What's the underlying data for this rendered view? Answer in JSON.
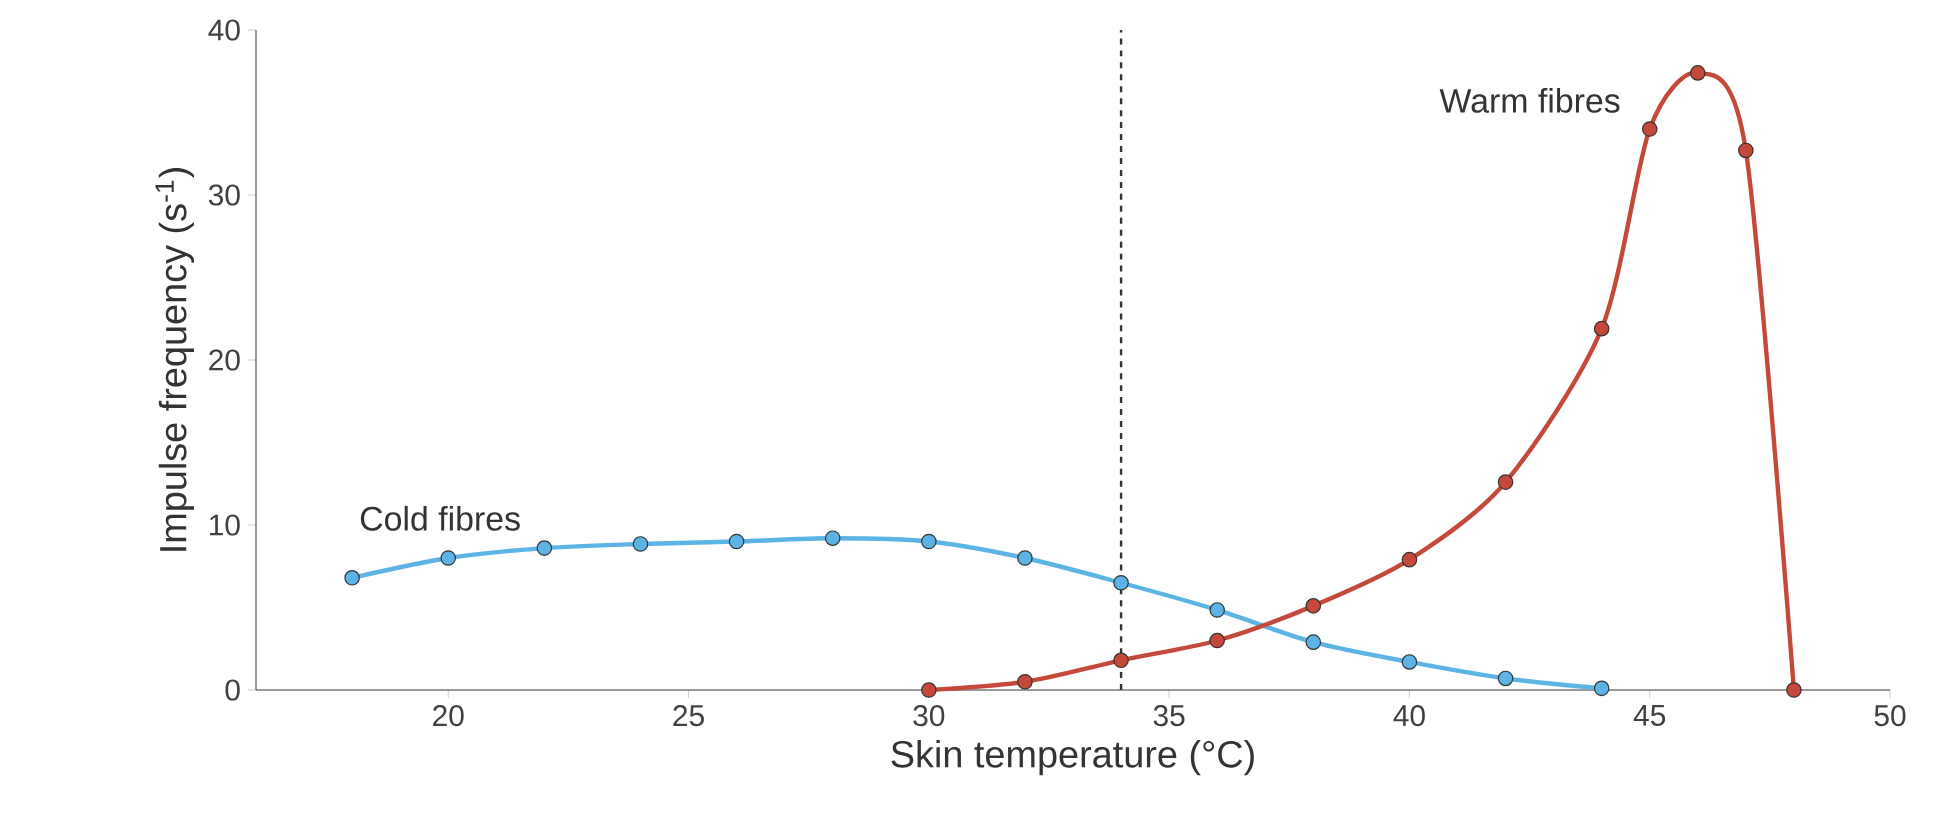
{
  "chart_data": {
    "type": "line",
    "xlabel": "Skin temperature (°C)",
    "ylabel": "Impulse frequency (s$^{-1}$)",
    "xlim": [
      16,
      50
    ],
    "ylim": [
      0,
      40
    ],
    "xticks": [
      20,
      25,
      30,
      35,
      40,
      45,
      50
    ],
    "yticks": [
      0,
      10,
      20,
      30,
      40
    ],
    "marker": "circle",
    "line_style": "solid",
    "ref_lines": [
      {
        "axis": "x",
        "value": 34,
        "color": "#333333",
        "line_style": "dashed"
      }
    ],
    "series": [
      {
        "name": "Cold fibres",
        "color": "#5bb4e5",
        "x": [
          18,
          20,
          22,
          24,
          26,
          28,
          30,
          32,
          34,
          36,
          38,
          40,
          42,
          44
        ],
        "values": [
          6.8,
          8.0,
          8.6,
          8.85,
          9.0,
          9.2,
          9.0,
          8.0,
          6.5,
          4.85,
          2.9,
          1.7,
          0.7,
          0.1
        ]
      },
      {
        "name": "Warm fibres",
        "color": "#c4493b",
        "x": [
          30,
          32,
          34,
          36,
          38,
          40,
          42,
          44,
          45,
          46,
          47,
          48
        ],
        "values": [
          0,
          0.5,
          1.8,
          3.0,
          5.1,
          7.9,
          12.6,
          21.9,
          34,
          37.4,
          32.7,
          0
        ]
      }
    ]
  }
}
